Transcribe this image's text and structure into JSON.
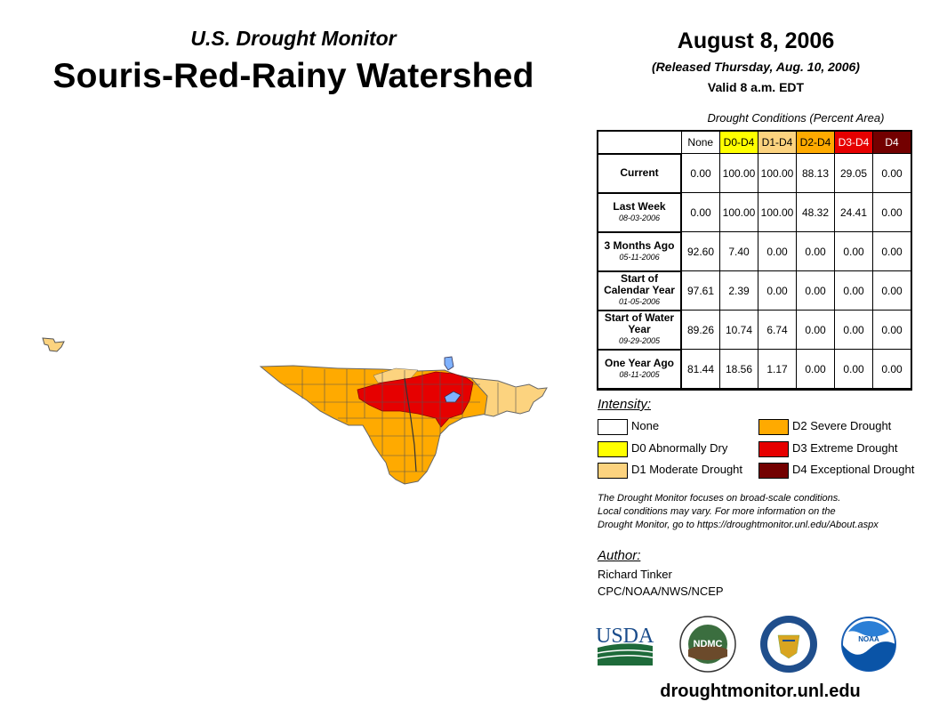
{
  "header": {
    "subtitle": "U.S. Drought Monitor",
    "title": "Souris-Red-Rainy Watershed",
    "date": "August 8, 2006",
    "released": "(Released Thursday, Aug. 10, 2006)",
    "valid": "Valid 8 a.m. EDT"
  },
  "table": {
    "caption": "Drought Conditions (Percent Area)",
    "columns": [
      {
        "label": "None",
        "color": "#ffffff",
        "text_color": "#000000"
      },
      {
        "label": "D0-D4",
        "color": "#ffff00",
        "text_color": "#000000"
      },
      {
        "label": "D1-D4",
        "color": "#fcd37f",
        "text_color": "#000000"
      },
      {
        "label": "D2-D4",
        "color": "#ffaa00",
        "text_color": "#000000"
      },
      {
        "label": "D3-D4",
        "color": "#e60000",
        "text_color": "#ffffff"
      },
      {
        "label": "D4",
        "color": "#730000",
        "text_color": "#ffffff"
      }
    ],
    "rows": [
      {
        "label": "Current",
        "date": "",
        "values": [
          "0.00",
          "100.00",
          "100.00",
          "88.13",
          "29.05",
          "0.00"
        ]
      },
      {
        "label": "Last Week",
        "date": "08-03-2006",
        "values": [
          "0.00",
          "100.00",
          "100.00",
          "48.32",
          "24.41",
          "0.00"
        ]
      },
      {
        "label": "3 Months Ago",
        "date": "05-11-2006",
        "values": [
          "92.60",
          "7.40",
          "0.00",
          "0.00",
          "0.00",
          "0.00"
        ]
      },
      {
        "label": "Start of Calendar Year",
        "date": "01-05-2006",
        "values": [
          "97.61",
          "2.39",
          "0.00",
          "0.00",
          "0.00",
          "0.00"
        ]
      },
      {
        "label": "Start of Water Year",
        "date": "09-29-2005",
        "values": [
          "89.26",
          "10.74",
          "6.74",
          "0.00",
          "0.00",
          "0.00"
        ]
      },
      {
        "label": "One Year Ago",
        "date": "08-11-2005",
        "values": [
          "81.44",
          "18.56",
          "1.17",
          "0.00",
          "0.00",
          "0.00"
        ]
      }
    ]
  },
  "legend": {
    "heading": "Intensity:",
    "items": [
      {
        "label": "None",
        "color": "#ffffff"
      },
      {
        "label": "D0 Abnormally Dry",
        "color": "#ffff00"
      },
      {
        "label": "D1 Moderate Drought",
        "color": "#fcd37f"
      },
      {
        "label": "D2 Severe Drought",
        "color": "#ffaa00"
      },
      {
        "label": "D3 Extreme Drought",
        "color": "#e60000"
      },
      {
        "label": "D4 Exceptional Drought",
        "color": "#730000"
      }
    ]
  },
  "note": [
    "The Drought Monitor focuses on broad-scale conditions.",
    "Local conditions may vary. For more information on the",
    "Drought Monitor, go to https://droughtmonitor.unl.edu/About.aspx"
  ],
  "author": {
    "heading": "Author:",
    "name": "Richard Tinker",
    "org": "CPC/NOAA/NWS/NCEP"
  },
  "logos": {
    "usda": "USDA",
    "ndmc": "NDMC",
    "noaa": "NOAA"
  },
  "footer": {
    "website": "droughtmonitor.unl.edu"
  }
}
